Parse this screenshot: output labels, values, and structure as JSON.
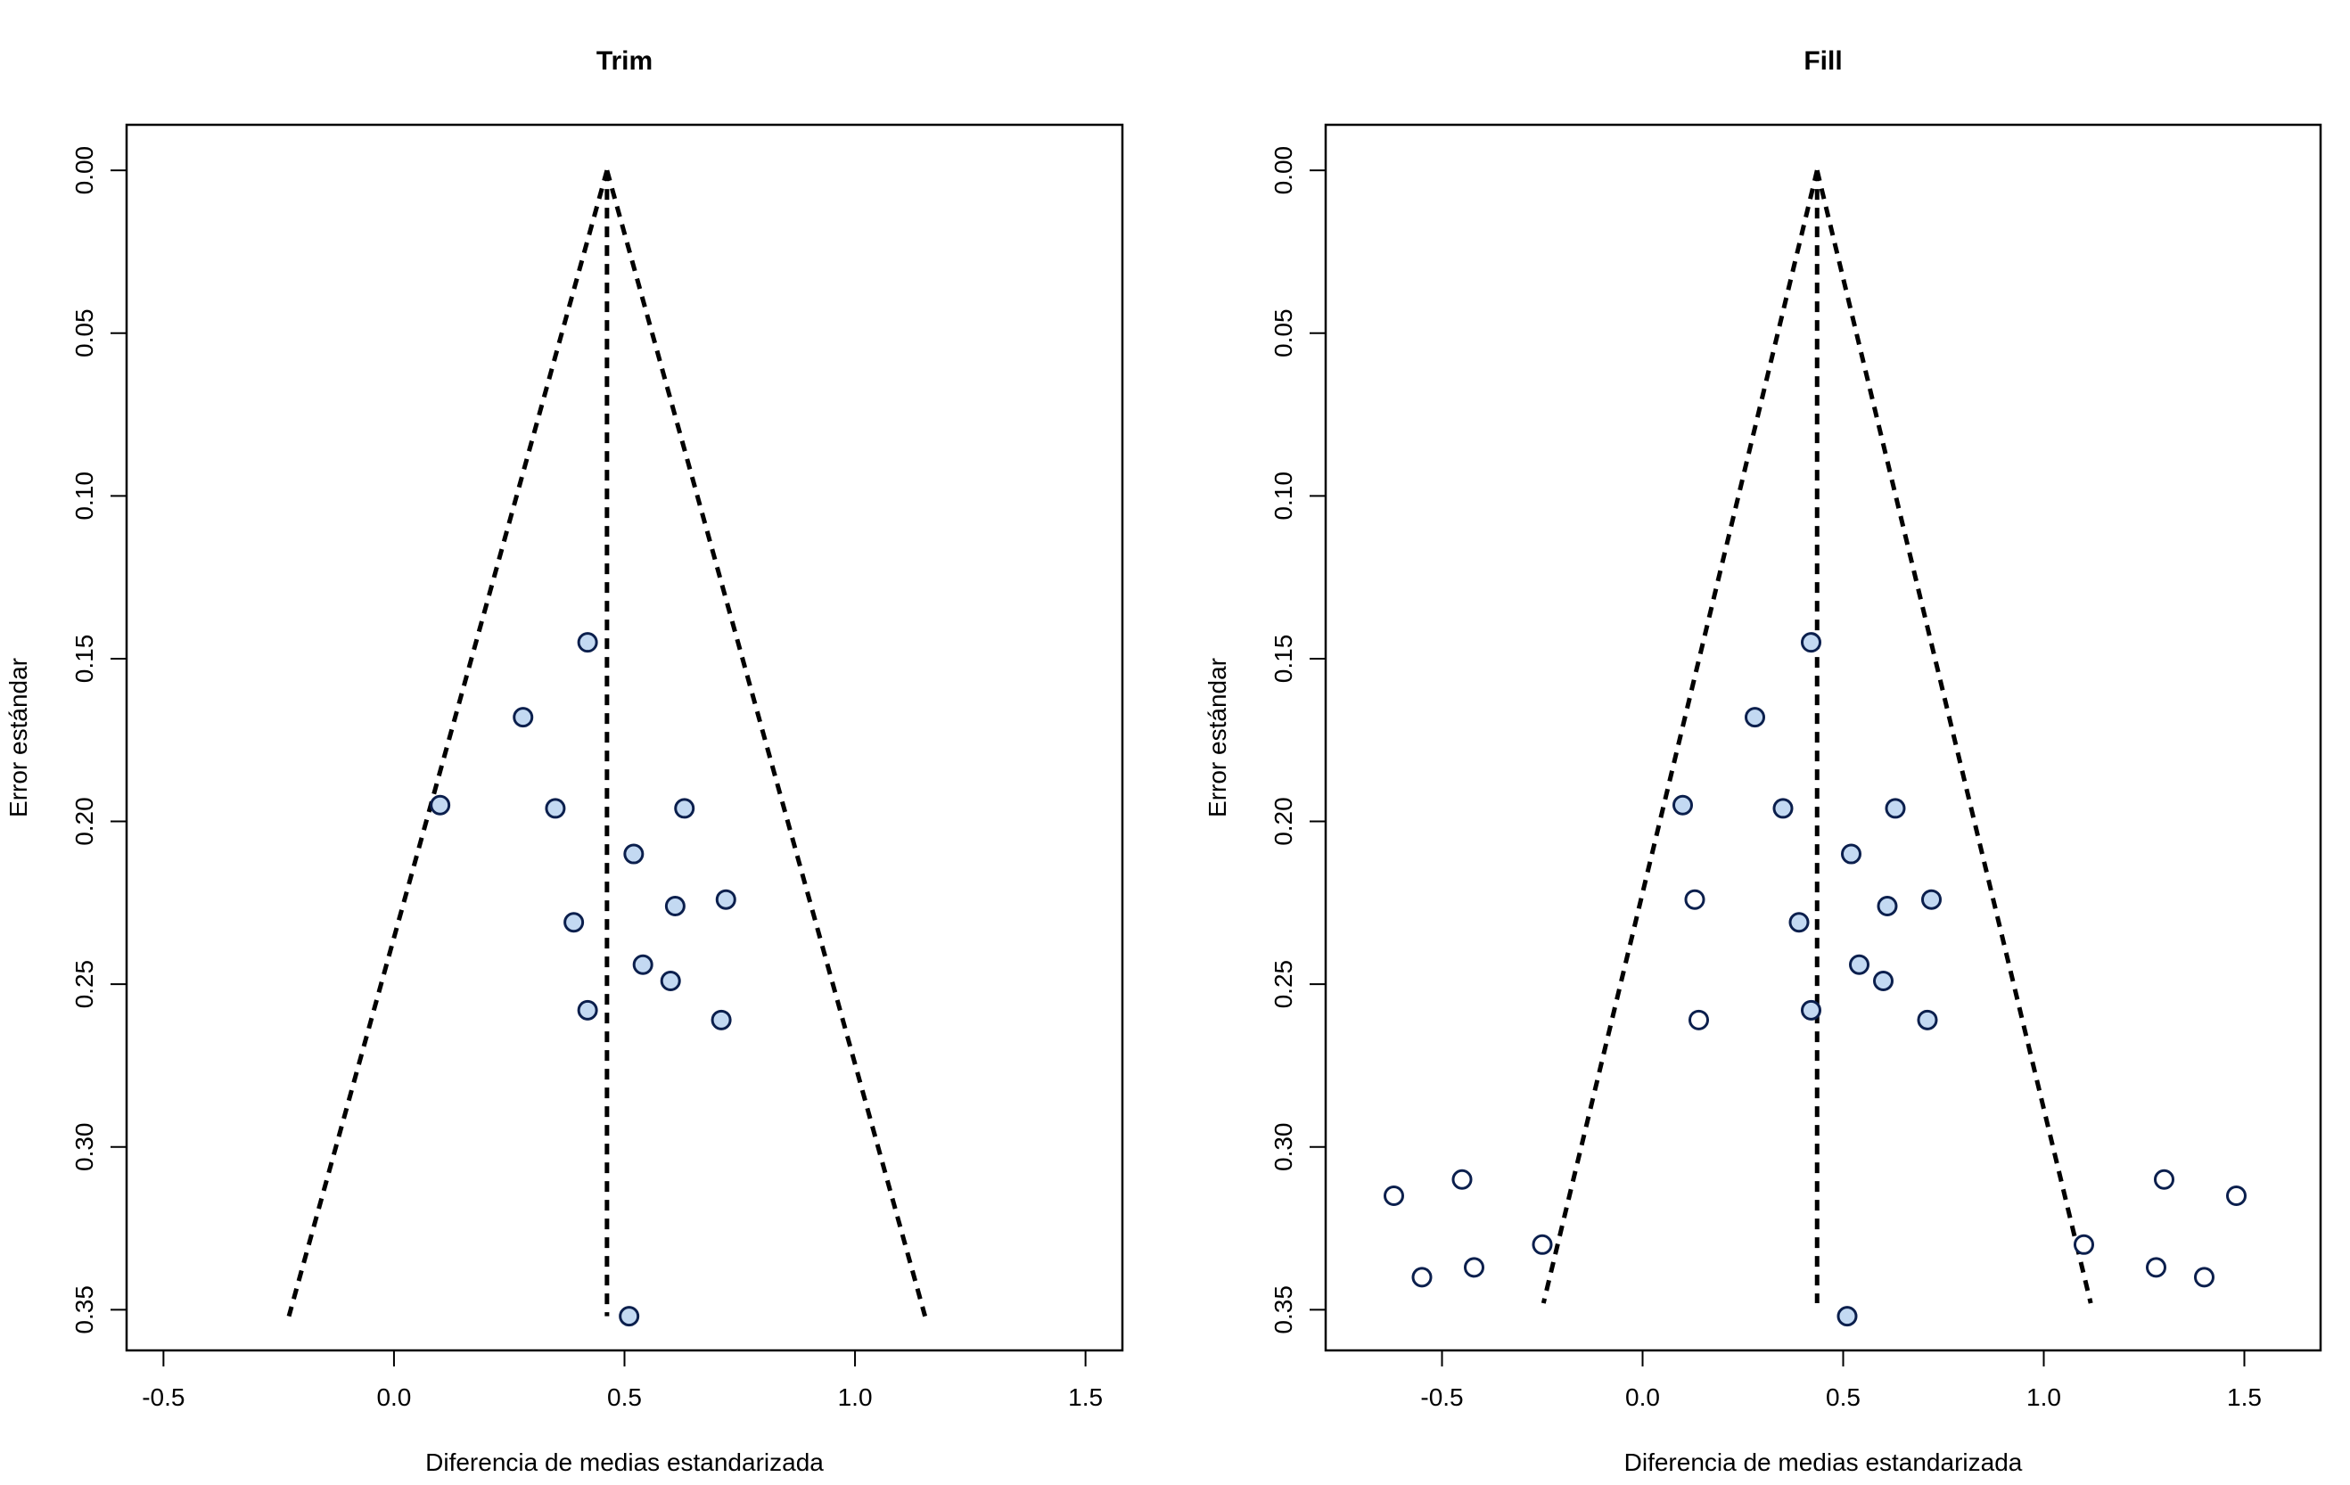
{
  "colors": {
    "observed_fill": "#c3d9f2",
    "imputed_fill": "#ffffff",
    "point_stroke": "#0b1f4d",
    "line": "#000000"
  },
  "chart_data": [
    {
      "type": "scatter",
      "subtype": "funnel",
      "title": "Trim",
      "xlabel": "Diferencia de medias estandarizada",
      "ylabel": "Error estándar",
      "xlim": [
        -0.58,
        1.58
      ],
      "ylim": [
        0.3625,
        -0.014
      ],
      "y_reversed": true,
      "x_ticks": [
        -0.5,
        0.0,
        0.5,
        1.0,
        1.5
      ],
      "x_tick_labels": [
        "-0.5",
        "0.0",
        "0.5",
        "1.0",
        "1.5"
      ],
      "y_ticks": [
        0.0,
        0.05,
        0.1,
        0.15,
        0.2,
        0.25,
        0.3,
        0.35
      ],
      "y_tick_labels": [
        "0.00",
        "0.05",
        "0.10",
        "0.15",
        "0.20",
        "0.25",
        "0.30",
        "0.35"
      ],
      "center": 0.462,
      "se_max": 0.352,
      "grid": false,
      "series": [
        {
          "type": "observed",
          "points": [
            {
              "x": 0.42,
              "y": 0.145
            },
            {
              "x": 0.28,
              "y": 0.168
            },
            {
              "x": 0.1,
              "y": 0.195
            },
            {
              "x": 0.35,
              "y": 0.196
            },
            {
              "x": 0.63,
              "y": 0.196
            },
            {
              "x": 0.52,
              "y": 0.21
            },
            {
              "x": 0.72,
              "y": 0.224
            },
            {
              "x": 0.61,
              "y": 0.226
            },
            {
              "x": 0.39,
              "y": 0.231
            },
            {
              "x": 0.54,
              "y": 0.244
            },
            {
              "x": 0.6,
              "y": 0.249
            },
            {
              "x": 0.42,
              "y": 0.258
            },
            {
              "x": 0.71,
              "y": 0.261
            },
            {
              "x": 0.51,
              "y": 0.352
            }
          ]
        }
      ]
    },
    {
      "type": "scatter",
      "subtype": "funnel",
      "title": "Fill",
      "xlabel": "Diferencia de medias estandarizada",
      "ylabel": "Error estándar",
      "xlim": [
        -0.79,
        1.69
      ],
      "ylim": [
        0.3625,
        -0.014
      ],
      "y_reversed": true,
      "x_ticks": [
        -0.5,
        0.0,
        0.5,
        1.0,
        1.5
      ],
      "x_tick_labels": [
        "-0.5",
        "0.0",
        "0.5",
        "1.0",
        "1.5"
      ],
      "y_ticks": [
        0.0,
        0.05,
        0.1,
        0.15,
        0.2,
        0.25,
        0.3,
        0.35
      ],
      "y_tick_labels": [
        "0.00",
        "0.05",
        "0.10",
        "0.15",
        "0.20",
        "0.25",
        "0.30",
        "0.35"
      ],
      "center": 0.435,
      "se_max": 0.348,
      "grid": false,
      "series": [
        {
          "type": "observed",
          "points": [
            {
              "x": 0.42,
              "y": 0.145
            },
            {
              "x": 0.28,
              "y": 0.168
            },
            {
              "x": 0.1,
              "y": 0.195
            },
            {
              "x": 0.35,
              "y": 0.196
            },
            {
              "x": 0.63,
              "y": 0.196
            },
            {
              "x": 0.52,
              "y": 0.21
            },
            {
              "x": 0.72,
              "y": 0.224
            },
            {
              "x": 0.61,
              "y": 0.226
            },
            {
              "x": 0.39,
              "y": 0.231
            },
            {
              "x": 0.54,
              "y": 0.244
            },
            {
              "x": 0.6,
              "y": 0.249
            },
            {
              "x": 0.42,
              "y": 0.258
            },
            {
              "x": 0.71,
              "y": 0.261
            },
            {
              "x": 0.51,
              "y": 0.352
            }
          ]
        },
        {
          "type": "imputed",
          "points": [
            {
              "x": 0.13,
              "y": 0.224
            },
            {
              "x": 0.14,
              "y": 0.261
            },
            {
              "x": -0.62,
              "y": 0.315
            },
            {
              "x": -0.45,
              "y": 0.31
            },
            {
              "x": -0.25,
              "y": 0.33
            },
            {
              "x": -0.55,
              "y": 0.34
            },
            {
              "x": -0.42,
              "y": 0.337
            },
            {
              "x": 1.1,
              "y": 0.33
            },
            {
              "x": 1.3,
              "y": 0.31
            },
            {
              "x": 1.48,
              "y": 0.315
            },
            {
              "x": 1.28,
              "y": 0.337
            },
            {
              "x": 1.4,
              "y": 0.34
            }
          ]
        }
      ]
    }
  ]
}
